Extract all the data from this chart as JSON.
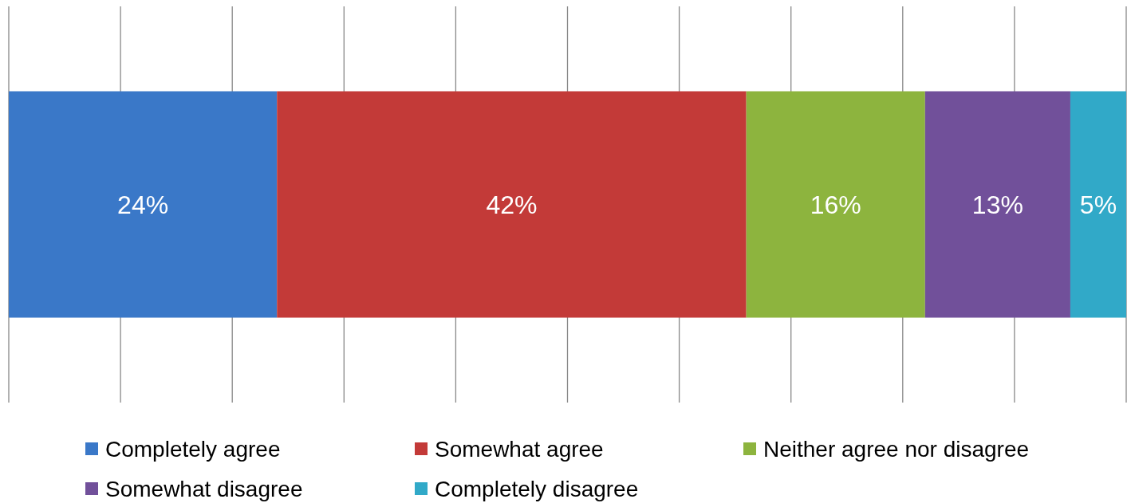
{
  "chart_data": {
    "type": "bar",
    "orientation": "horizontal",
    "stacked": true,
    "categories": [
      null
    ],
    "series": [
      {
        "name": "Completely agree",
        "color": "#3a78c8",
        "values": [
          24
        ],
        "value_labels": [
          "24%"
        ]
      },
      {
        "name": "Somewhat agree",
        "color": "#c33a38",
        "values": [
          42
        ],
        "value_labels": [
          "42%"
        ]
      },
      {
        "name": "Neither agree nor disagree",
        "color": "#8db43e",
        "values": [
          16
        ],
        "value_labels": [
          "16%"
        ]
      },
      {
        "name": "Somewhat disagree",
        "color": "#71509a",
        "values": [
          13
        ],
        "value_labels": [
          "13%"
        ]
      },
      {
        "name": "Completely disagree",
        "color": "#31a9c8",
        "values": [
          5
        ],
        "value_labels": [
          "5%"
        ]
      }
    ],
    "xlim": [
      0,
      100
    ],
    "xticks": [
      {
        "value": 0,
        "label": null
      },
      {
        "value": 10,
        "label": null
      },
      {
        "value": 20,
        "label": null
      },
      {
        "value": 30,
        "label": null
      },
      {
        "value": 40,
        "label": null
      },
      {
        "value": 50,
        "label": null
      },
      {
        "value": 60,
        "label": null
      },
      {
        "value": 70,
        "label": null
      },
      {
        "value": 80,
        "label": null
      },
      {
        "value": 90,
        "label": null
      },
      {
        "value": 100,
        "label": null
      }
    ],
    "grid": "x",
    "tick_labels": false,
    "legend": "bottom"
  }
}
